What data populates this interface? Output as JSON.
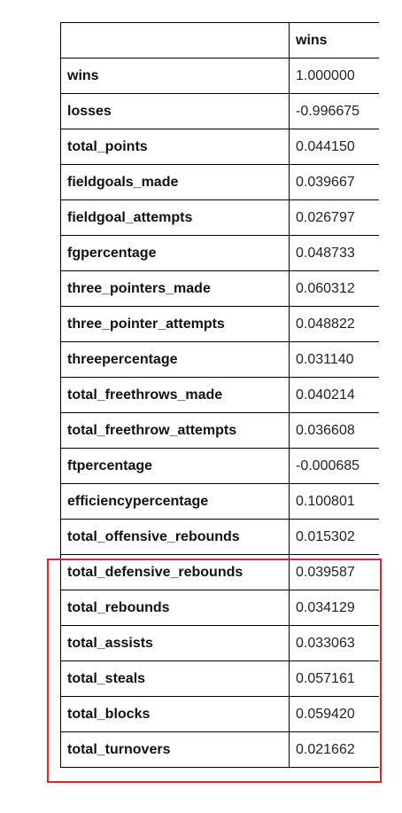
{
  "table": {
    "column_header": "wins",
    "rows": [
      {
        "name": "wins",
        "value": "1.000000"
      },
      {
        "name": "losses",
        "value": "-0.996675"
      },
      {
        "name": "total_points",
        "value": "0.044150"
      },
      {
        "name": "fieldgoals_made",
        "value": "0.039667"
      },
      {
        "name": "fieldgoal_attempts",
        "value": "0.026797"
      },
      {
        "name": "fgpercentage",
        "value": "0.048733"
      },
      {
        "name": "three_pointers_made",
        "value": "0.060312"
      },
      {
        "name": "three_pointer_attempts",
        "value": "0.048822"
      },
      {
        "name": "threepercentage",
        "value": "0.031140"
      },
      {
        "name": "total_freethrows_made",
        "value": "0.040214"
      },
      {
        "name": "total_freethrow_attempts",
        "value": "0.036608"
      },
      {
        "name": "ftpercentage",
        "value": "-0.000685"
      },
      {
        "name": "efficiencypercentage",
        "value": "0.100801"
      },
      {
        "name": "total_offensive_rebounds",
        "value": "0.015302"
      },
      {
        "name": "total_defensive_rebounds",
        "value": "0.039587"
      },
      {
        "name": "total_rebounds",
        "value": "0.034129"
      },
      {
        "name": "total_assists",
        "value": "0.033063"
      },
      {
        "name": "total_steals",
        "value": "0.057161"
      },
      {
        "name": "total_blocks",
        "value": "0.059420"
      },
      {
        "name": "total_turnovers",
        "value": "0.021662"
      }
    ]
  },
  "highlight": {
    "color": "#e0242b"
  }
}
